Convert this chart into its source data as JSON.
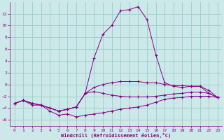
{
  "xlabel": "Windchill (Refroidissement éolien,°C)",
  "bg_color": "#cce8e8",
  "grid_color": "#99cccc",
  "line_color": "#880088",
  "x_values": [
    0,
    1,
    2,
    3,
    4,
    5,
    6,
    7,
    8,
    9,
    10,
    11,
    12,
    13,
    14,
    15,
    16,
    17,
    18,
    19,
    20,
    21,
    22,
    23
  ],
  "series": {
    "curve1": [
      -3.2,
      -2.7,
      -3.2,
      -3.5,
      -4.0,
      -4.5,
      -4.2,
      -3.8,
      -1.5,
      4.5,
      8.5,
      10.0,
      12.5,
      12.7,
      13.2,
      11.0,
      5.0,
      0.3,
      -0.3,
      -0.5,
      -0.3,
      -0.3,
      -1.5,
      -2.2
    ],
    "curve2": [
      -3.2,
      -2.7,
      -3.2,
      -3.5,
      -4.0,
      -4.5,
      -4.2,
      -3.8,
      -1.5,
      -1.2,
      -1.5,
      -1.8,
      -2.0,
      -2.1,
      -2.1,
      -2.1,
      -2.0,
      -1.8,
      -1.6,
      -1.5,
      -1.3,
      -1.3,
      -1.5,
      -2.2
    ],
    "curve3": [
      -3.2,
      -2.7,
      -3.2,
      -3.5,
      -4.0,
      -4.5,
      -4.2,
      -3.8,
      -1.5,
      -0.5,
      0.0,
      0.3,
      0.5,
      0.5,
      0.5,
      0.3,
      0.3,
      0.0,
      -0.2,
      -0.2,
      -0.3,
      -0.3,
      -1.0,
      -2.2
    ],
    "curve4": [
      -3.2,
      -2.7,
      -3.5,
      -3.5,
      -4.5,
      -5.2,
      -5.0,
      -5.5,
      -5.2,
      -5.0,
      -4.8,
      -4.5,
      -4.2,
      -4.0,
      -3.8,
      -3.5,
      -3.0,
      -2.5,
      -2.3,
      -2.2,
      -2.0,
      -2.0,
      -2.0,
      -2.2
    ]
  },
  "ylim": [
    -7,
    14
  ],
  "xlim": [
    -0.5,
    23.5
  ],
  "yticks": [
    -6,
    -4,
    -2,
    0,
    2,
    4,
    6,
    8,
    10,
    12
  ],
  "xticks": [
    0,
    1,
    2,
    3,
    4,
    5,
    6,
    7,
    8,
    9,
    10,
    11,
    12,
    13,
    14,
    15,
    16,
    17,
    18,
    19,
    20,
    21,
    22,
    23
  ]
}
